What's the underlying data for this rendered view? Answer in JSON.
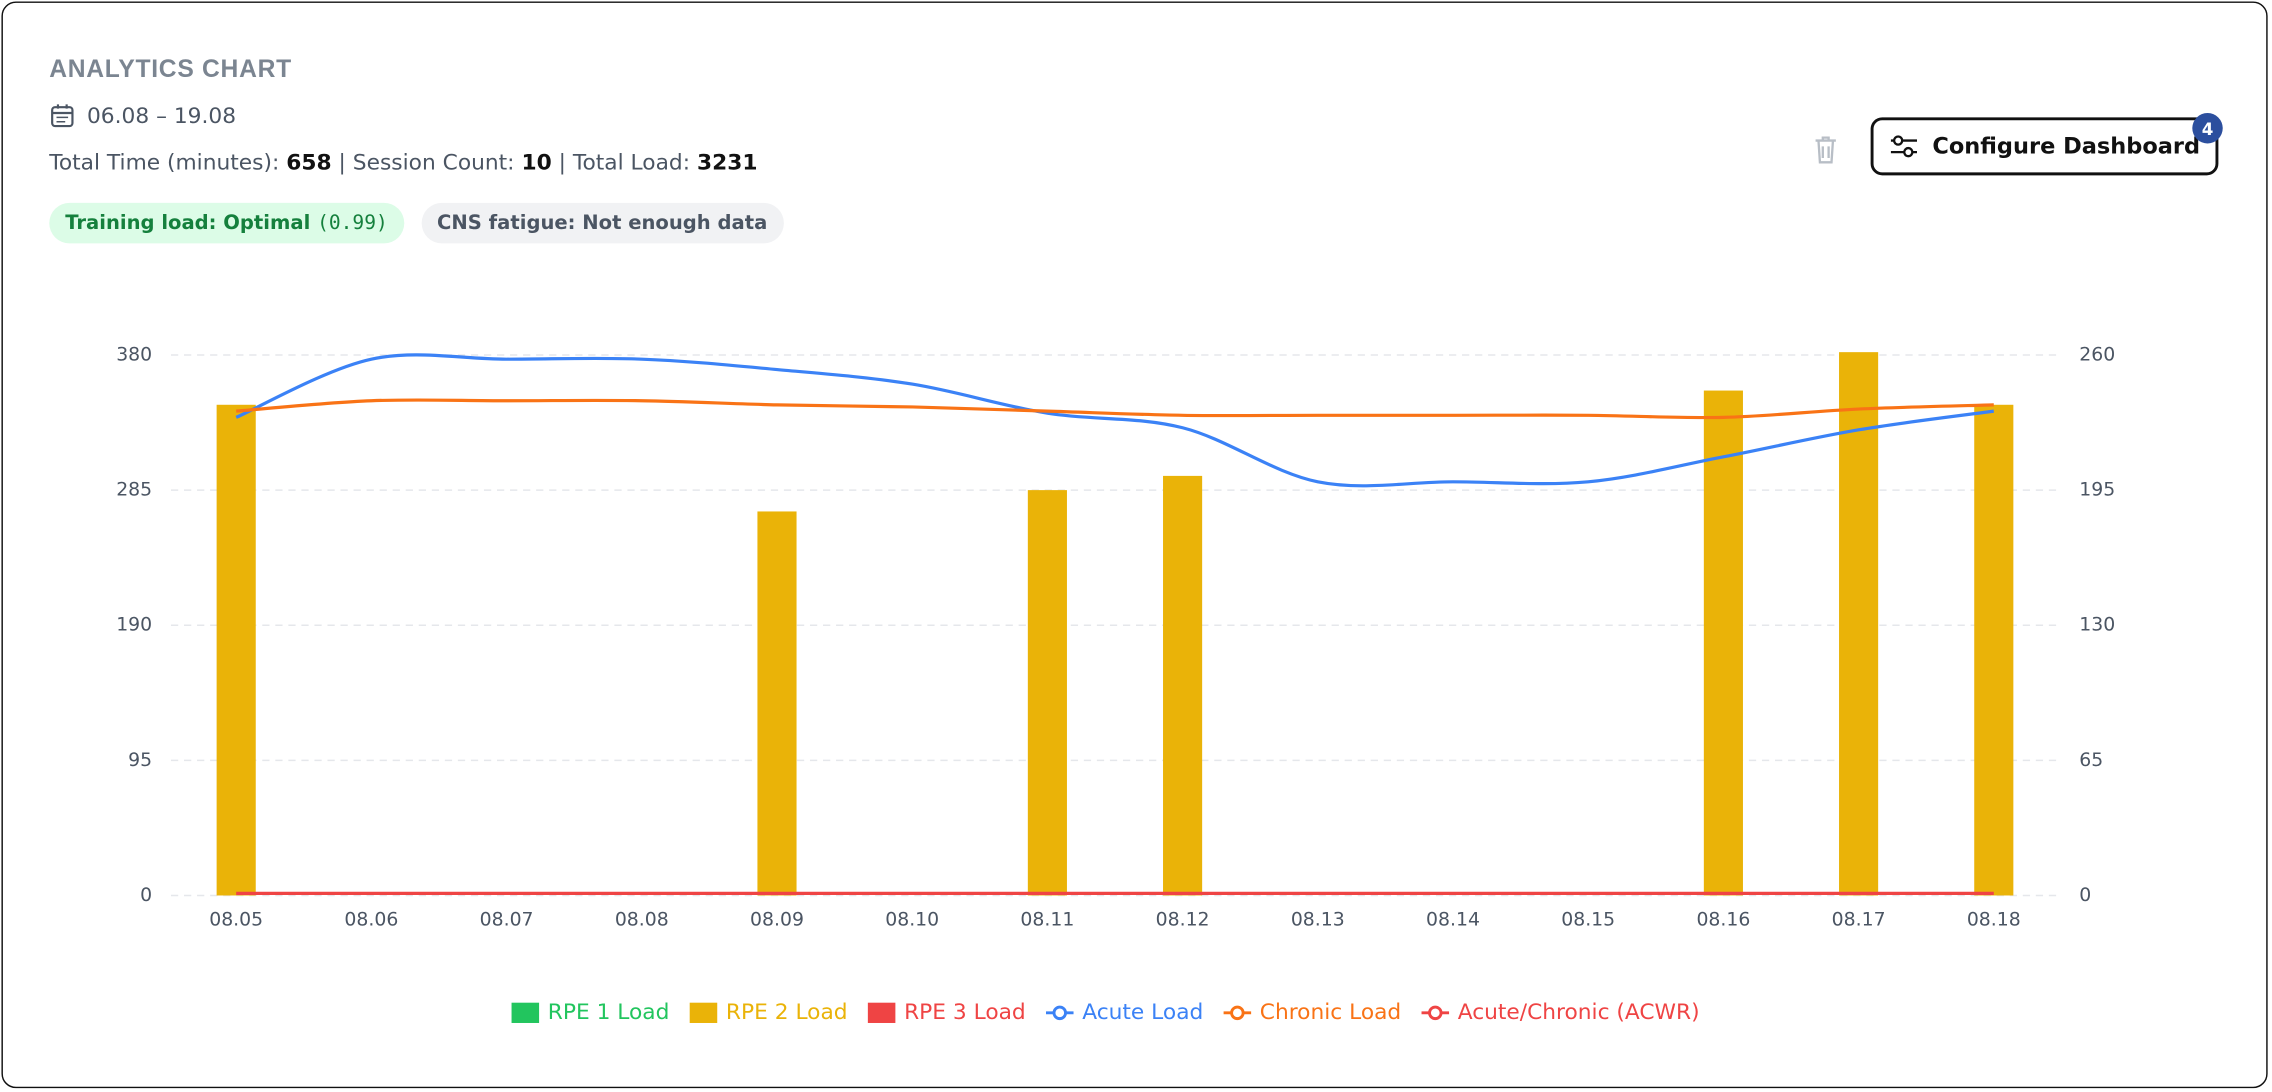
{
  "header": {
    "title": "ANALYTICS CHART",
    "date_range": "06.08 – 19.08",
    "stats": [
      {
        "label": "Total Time (minutes):",
        "value": "658"
      },
      {
        "label": "Session Count:",
        "value": "10"
      },
      {
        "label": "Total Load:",
        "value": "3231"
      }
    ],
    "separator": "|",
    "badges": [
      {
        "label": "Training load: Optimal",
        "detail": "(0.99)"
      },
      {
        "label": "CNS fatigue: Not enough data"
      }
    ],
    "button": {
      "label": "Configure Dashboard",
      "count": "4"
    }
  },
  "chart_data": {
    "type": "bar",
    "categories": [
      "08.05",
      "08.06",
      "08.07",
      "08.08",
      "08.09",
      "08.10",
      "08.11",
      "08.12",
      "08.13",
      "08.14",
      "08.15",
      "08.16",
      "08.17",
      "08.18"
    ],
    "ylim": [
      0,
      380
    ],
    "yticks": [
      0,
      95,
      190,
      285,
      380
    ],
    "y2lim": [
      0,
      260
    ],
    "y2ticks": [
      0,
      65,
      130,
      195,
      260
    ],
    "grid": true,
    "series": [
      {
        "name": "RPE 1 Load",
        "type": "bar",
        "color": "#22c55e",
        "values": [
          null,
          null,
          null,
          null,
          null,
          null,
          null,
          null,
          null,
          null,
          null,
          null,
          null,
          null
        ]
      },
      {
        "name": "RPE 2 Load",
        "type": "bar",
        "color": "#eab308",
        "values": [
          345,
          null,
          null,
          null,
          270,
          null,
          285,
          295,
          null,
          null,
          null,
          355,
          382,
          345
        ]
      },
      {
        "name": "RPE 3 Load",
        "type": "bar",
        "color": "#ef4444",
        "values": [
          null,
          null,
          null,
          null,
          null,
          null,
          null,
          null,
          null,
          null,
          null,
          null,
          null,
          null
        ]
      },
      {
        "name": "Acute Load",
        "type": "line",
        "axis": "y2",
        "color": "#3b82f6",
        "values": [
          230,
          258,
          258,
          258,
          253,
          246,
          232,
          225,
          199,
          199,
          199,
          211,
          224,
          233
        ]
      },
      {
        "name": "Chronic Load",
        "type": "line",
        "axis": "y2",
        "color": "#f97316",
        "values": [
          233,
          238,
          238,
          238,
          236,
          235,
          233,
          231,
          231,
          231,
          231,
          230,
          234,
          236
        ]
      },
      {
        "name": "Acute/Chronic (ACWR)",
        "type": "line",
        "axis": "y2",
        "color": "#ef4444",
        "values": [
          1,
          1,
          1,
          1,
          1,
          1,
          1,
          1,
          1,
          1,
          1,
          1,
          1,
          1
        ]
      }
    ]
  }
}
